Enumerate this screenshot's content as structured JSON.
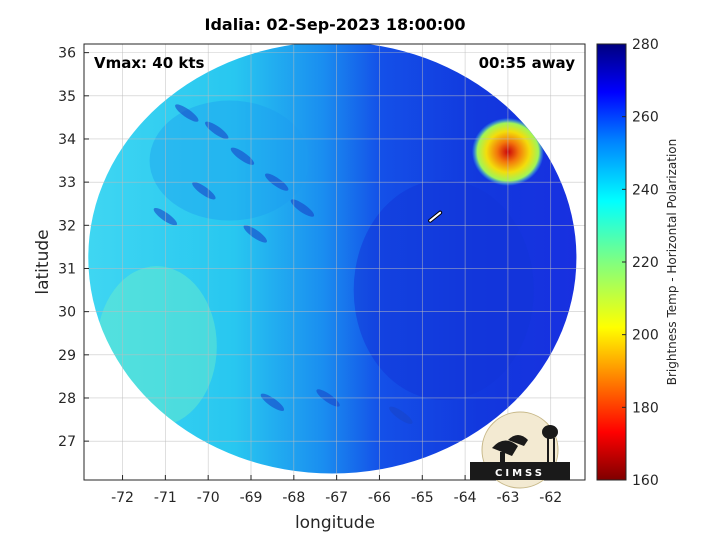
{
  "chart_data": {
    "type": "heatmap",
    "title": "Idalia: 02-Sep-2023 18:00:00",
    "xlabel": "longitude",
    "ylabel": "latitude",
    "xlim": [
      -72.9,
      -61.2
    ],
    "ylim": [
      26.1,
      36.2
    ],
    "x_ticks": [
      -72,
      -71,
      -70,
      -69,
      -68,
      -67,
      -66,
      -65,
      -64,
      -63,
      -62
    ],
    "y_ticks": [
      27,
      28,
      29,
      30,
      31,
      32,
      33,
      34,
      35,
      36
    ],
    "grid": true,
    "annotations": {
      "vmax": "Vmax: 40 kts",
      "away": "00:35 away"
    },
    "storm_center": {
      "lon": -64.7,
      "lat": 32.2
    },
    "colorbar": {
      "label": "Brightness Temp - Horizontal Polarization",
      "range": [
        160,
        280
      ],
      "ticks": [
        160,
        180,
        200,
        220,
        240,
        260,
        280
      ],
      "colormap": "jet"
    },
    "swath": {
      "center_lon": -67.1,
      "center_lat": 31.25,
      "radius_lon": 5.7,
      "radius_lat": 5.0
    },
    "logo": {
      "text": "CIMSS"
    }
  }
}
